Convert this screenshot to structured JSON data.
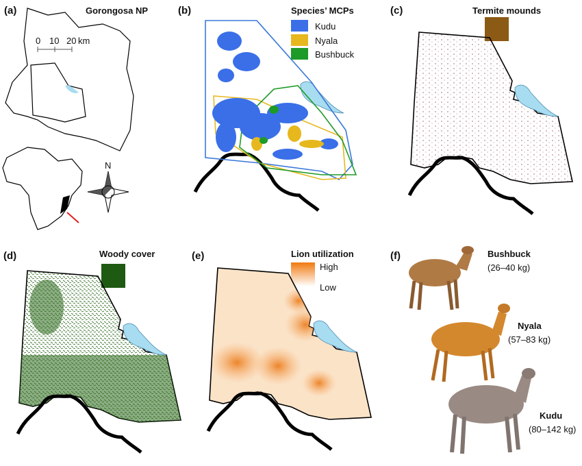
{
  "panels": [
    {
      "label": "(a)",
      "title": "Gorongosa NP",
      "scale": [
        "0",
        "10",
        "20",
        "km"
      ],
      "compass": "N"
    },
    {
      "label": "(b)",
      "title": "Species’ MCPs",
      "legend": [
        {
          "name": "Kudu",
          "color": "#3a6fe8"
        },
        {
          "name": "Nyala",
          "color": "#e6b81e"
        },
        {
          "name": "Bushbuck",
          "color": "#1e9a28"
        }
      ]
    },
    {
      "label": "(c)",
      "title": "Termite mounds",
      "color": "#8b5a14"
    },
    {
      "label": "(d)",
      "title": "Woody cover",
      "color": "#1e5a12"
    },
    {
      "label": "(e)",
      "title": "Lion utilization",
      "high": "High",
      "low": "Low"
    },
    {
      "label": "(f)",
      "animals": [
        {
          "name": "Bushbuck",
          "mass": "(26–40 kg)"
        },
        {
          "name": "Nyala",
          "mass": "(57–83 kg)"
        },
        {
          "name": "Kudu",
          "mass": "(80–142 kg)"
        }
      ]
    }
  ]
}
